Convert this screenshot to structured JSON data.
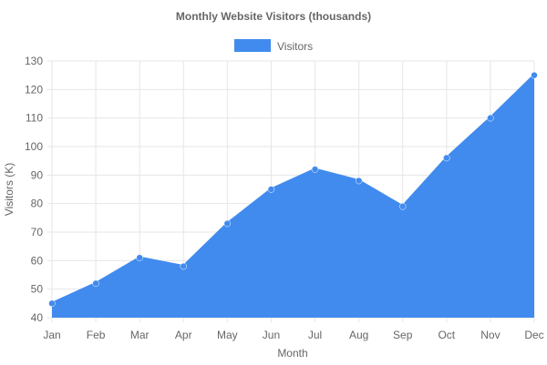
{
  "chart_data": {
    "type": "area",
    "title": "Monthly Website Visitors (thousands)",
    "xlabel": "Month",
    "ylabel": "Visitors (K)",
    "categories": [
      "Jan",
      "Feb",
      "Mar",
      "Apr",
      "May",
      "Jun",
      "Jul",
      "Aug",
      "Sep",
      "Oct",
      "Nov",
      "Dec"
    ],
    "series": [
      {
        "name": "Visitors",
        "values": [
          45,
          52,
          61,
          58,
          73,
          85,
          92,
          88,
          79,
          96,
          110,
          125
        ],
        "color": "#418BEE"
      }
    ],
    "ylim": [
      40,
      130
    ],
    "yticks": [
      40,
      50,
      60,
      70,
      80,
      90,
      100,
      110,
      120,
      130
    ],
    "grid": true,
    "legend": "top-center"
  }
}
